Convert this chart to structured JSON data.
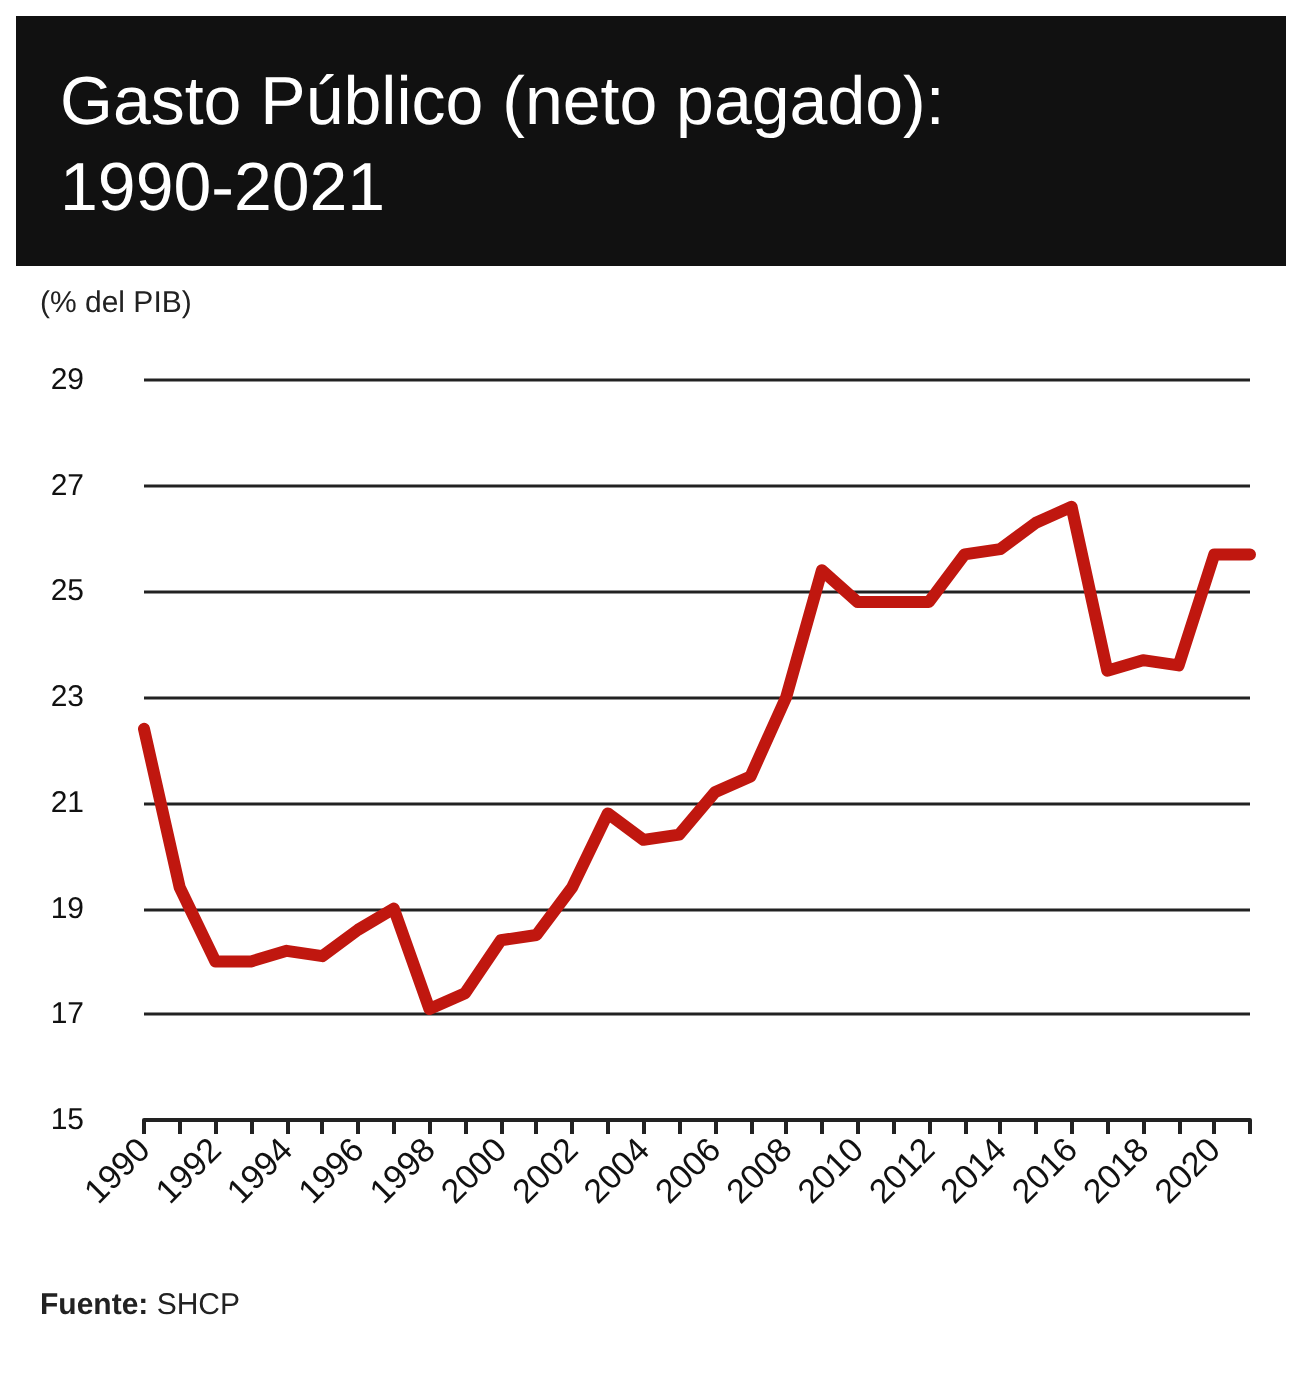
{
  "chart_data": {
    "type": "line",
    "title": "Gasto Público (neto pagado):\n1990-2021",
    "ylabel": "(% del PIB)",
    "categories": [
      "1990",
      null,
      "1992",
      null,
      "1994",
      null,
      "1996",
      null,
      "1998",
      null,
      "2000",
      null,
      "2002",
      null,
      "2004",
      null,
      "2006",
      null,
      "2008",
      null,
      "2010",
      null,
      "2012",
      null,
      "2014",
      null,
      "2016",
      null,
      "2018",
      null,
      "2020",
      null
    ],
    "series": [
      {
        "color": "#c0170f",
        "values": [
          22.4,
          19.4,
          18.0,
          18.0,
          18.2,
          18.1,
          18.6,
          19.0,
          17.1,
          17.4,
          18.4,
          18.5,
          19.4,
          20.8,
          20.3,
          20.4,
          21.2,
          21.5,
          23.0,
          25.4,
          24.8,
          24.8,
          24.8,
          25.7,
          25.8,
          26.3,
          26.6,
          23.5,
          23.7,
          23.6,
          25.7,
          25.7
        ]
      }
    ],
    "ylim": [
      15,
      29
    ],
    "yticks": [
      15,
      17,
      19,
      21,
      23,
      25,
      27,
      29
    ],
    "grid": "y",
    "marker": "none",
    "line_style": "solid",
    "annotations": [
      "Fuente: SHCP"
    ]
  }
}
